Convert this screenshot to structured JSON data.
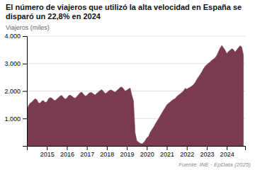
{
  "chart_data": {
    "type": "area",
    "title": "El número de viajeros que utilizó la alta velocidad en España se disparó un 22,8% en 2024",
    "ylabel": "Viajeros (miles)",
    "source": "Fuente: INE · EpData (2025)",
    "color": "#7B3B4E",
    "grid": true,
    "xlim": [
      2014,
      2024.9166666666667
    ],
    "xticks": [
      2015,
      2016,
      2017,
      2018,
      2019,
      2020,
      2021,
      2022,
      2023,
      2024
    ],
    "ylim": [
      0,
      4000
    ],
    "yticks": [
      {
        "value": 1000,
        "label": "1.000"
      },
      {
        "value": 2000,
        "label": "2.000"
      },
      {
        "value": 3000,
        "label": "3.000"
      },
      {
        "value": 4000,
        "label": "4.000"
      }
    ],
    "x": [
      2014,
      2014.0833333333333,
      2014.1666666666667,
      2014.25,
      2014.3333333333333,
      2014.4166666666667,
      2014.5,
      2014.5833333333333,
      2014.6666666666667,
      2014.75,
      2014.8333333333333,
      2014.9166666666667,
      2015,
      2015.0833333333333,
      2015.1666666666667,
      2015.25,
      2015.3333333333333,
      2015.4166666666667,
      2015.5,
      2015.5833333333333,
      2015.6666666666667,
      2015.75,
      2015.8333333333333,
      2015.9166666666667,
      2016,
      2016.0833333333333,
      2016.1666666666667,
      2016.25,
      2016.3333333333333,
      2016.4166666666667,
      2016.5,
      2016.5833333333333,
      2016.6666666666667,
      2016.75,
      2016.8333333333333,
      2016.9166666666667,
      2017,
      2017.0833333333333,
      2017.1666666666667,
      2017.25,
      2017.3333333333333,
      2017.4166666666667,
      2017.5,
      2017.5833333333333,
      2017.6666666666667,
      2017.75,
      2017.8333333333333,
      2017.9166666666667,
      2018,
      2018.0833333333333,
      2018.1666666666667,
      2018.25,
      2018.3333333333333,
      2018.4166666666667,
      2018.5,
      2018.5833333333333,
      2018.6666666666667,
      2018.75,
      2018.8333333333333,
      2018.9166666666667,
      2019,
      2019.0833333333333,
      2019.1666666666667,
      2019.25,
      2019.3333333333333,
      2019.4166666666667,
      2019.5,
      2019.5833333333333,
      2019.6666666666667,
      2019.75,
      2019.8333333333333,
      2019.9166666666667,
      2020,
      2020.0833333333333,
      2020.1666666666667,
      2020.25,
      2020.3333333333333,
      2020.4166666666667,
      2020.5,
      2020.5833333333333,
      2020.6666666666667,
      2020.75,
      2020.8333333333333,
      2020.9166666666667,
      2021,
      2021.0833333333333,
      2021.1666666666667,
      2021.25,
      2021.3333333333333,
      2021.4166666666667,
      2021.5,
      2021.5833333333333,
      2021.6666666666667,
      2021.75,
      2021.8333333333333,
      2021.9166666666667,
      2022,
      2022.0833333333333,
      2022.1666666666667,
      2022.25,
      2022.3333333333333,
      2022.4166666666667,
      2022.5,
      2022.5833333333333,
      2022.6666666666667,
      2022.75,
      2022.8333333333333,
      2022.9166666666667,
      2023,
      2023.0833333333333,
      2023.1666666666667,
      2023.25,
      2023.3333333333333,
      2023.4166666666667,
      2023.5,
      2023.5833333333333,
      2023.6666666666667,
      2023.75,
      2023.8333333333333,
      2023.9166666666667,
      2024,
      2024.0833333333333,
      2024.1666666666667,
      2024.25,
      2024.3333333333333,
      2024.4166666666667,
      2024.5,
      2024.5833333333333,
      2024.6666666666667,
      2024.75,
      2024.8333333333333
    ],
    "values": [
      1290,
      1480,
      1560,
      1600,
      1670,
      1720,
      1680,
      1560,
      1560,
      1640,
      1650,
      1580,
      1610,
      1720,
      1760,
      1740,
      1680,
      1650,
      1710,
      1760,
      1820,
      1840,
      1760,
      1710,
      1740,
      1830,
      1850,
      1810,
      1760,
      1740,
      1800,
      1870,
      1940,
      1960,
      1880,
      1820,
      1840,
      1910,
      1950,
      1940,
      1890,
      1860,
      1920,
      1970,
      2020,
      2050,
      1980,
      1910,
      1940,
      2000,
      2040,
      2030,
      1990,
      1960,
      2020,
      2070,
      2130,
      2150,
      2080,
      2000,
      2030,
      2080,
      2110,
      1850,
      1640,
      480,
      190,
      140,
      95,
      75,
      115,
      195,
      290,
      340,
      490,
      590,
      680,
      790,
      890,
      990,
      1090,
      1200,
      1300,
      1390,
      1500,
      1550,
      1600,
      1650,
      1700,
      1720,
      1800,
      1850,
      1900,
      1950,
      2000,
      2100,
      2070,
      2110,
      2140,
      2180,
      2230,
      2310,
      2420,
      2510,
      2600,
      2700,
      2810,
      2900,
      2960,
      3010,
      3060,
      3120,
      3160,
      3210,
      3300,
      3430,
      3560,
      3660,
      3580,
      3490,
      3370,
      3440,
      3490,
      3540,
      3510,
      3420,
      3500,
      3580,
      3650,
      3600,
      3310
    ]
  }
}
